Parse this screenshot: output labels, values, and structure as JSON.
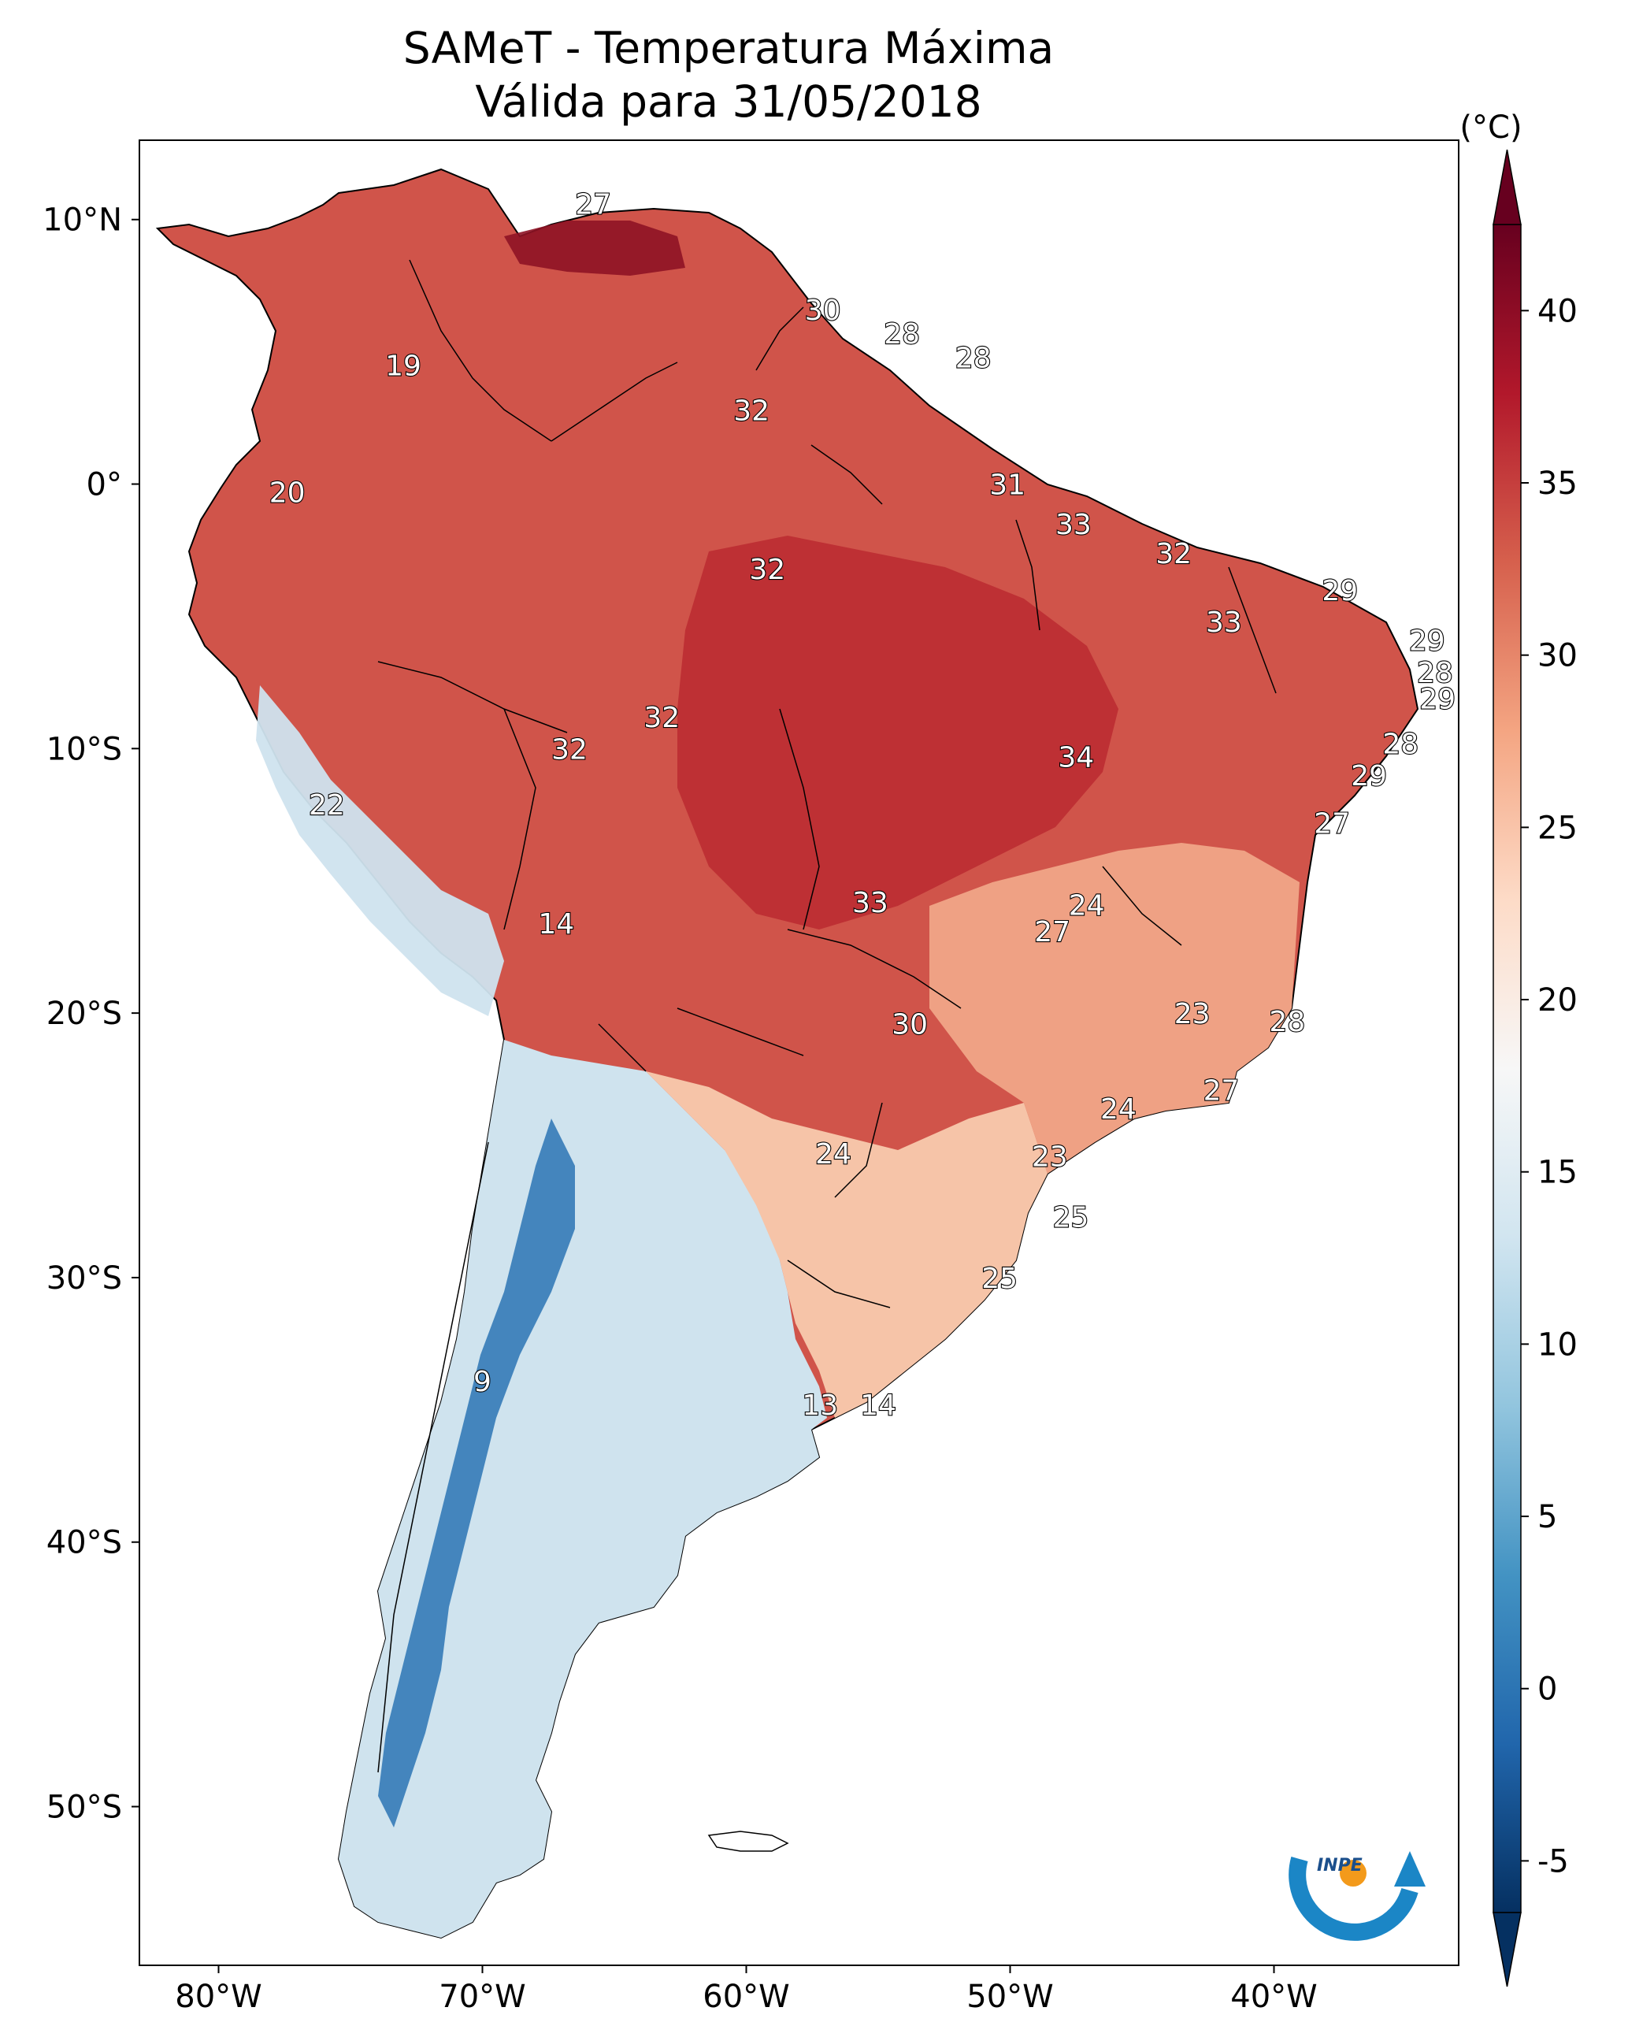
{
  "title": "SAMeT - Temperatura Máxima",
  "subtitle": "Válida para 31/05/2018",
  "colorbar": {
    "unit": "(°C)",
    "ticks": [
      "40",
      "35",
      "30",
      "25",
      "20",
      "15",
      "10",
      "5",
      "0",
      "-5"
    ],
    "colors": [
      "#053061",
      "#2166ac",
      "#4393c3",
      "#92c5de",
      "#d1e5f0",
      "#f7f7f7",
      "#fddbc7",
      "#f4a582",
      "#d6604d",
      "#b2182b",
      "#67001f"
    ]
  },
  "axes": {
    "lat_labels": [
      "10°N",
      "0°",
      "10°S",
      "20°S",
      "30°S",
      "40°S",
      "50°S"
    ],
    "lon_labels": [
      "80°W",
      "70°W",
      "60°W",
      "50°W",
      "40°W"
    ]
  },
  "map_labels": [
    {
      "text": "27",
      "lon": -65.8,
      "lat": 10.6
    },
    {
      "text": "30",
      "lon": -57.1,
      "lat": 6.6
    },
    {
      "text": "28",
      "lon": -54.1,
      "lat": 5.7
    },
    {
      "text": "28",
      "lon": -51.4,
      "lat": 4.8
    },
    {
      "text": "19",
      "lon": -73.0,
      "lat": 4.5
    },
    {
      "text": "32",
      "lon": -59.8,
      "lat": 2.8
    },
    {
      "text": "20",
      "lon": -77.4,
      "lat": -0.3
    },
    {
      "text": "31",
      "lon": -50.1,
      "lat": 0.0
    },
    {
      "text": "33",
      "lon": -47.6,
      "lat": -1.5
    },
    {
      "text": "32",
      "lon": -43.8,
      "lat": -2.6
    },
    {
      "text": "32",
      "lon": -59.2,
      "lat": -3.2
    },
    {
      "text": "29",
      "lon": -37.5,
      "lat": -4.0
    },
    {
      "text": "33",
      "lon": -41.9,
      "lat": -5.2
    },
    {
      "text": "29",
      "lon": -34.2,
      "lat": -5.9
    },
    {
      "text": "28",
      "lon": -33.9,
      "lat": -7.1
    },
    {
      "text": "29",
      "lon": -33.8,
      "lat": -8.1
    },
    {
      "text": "32",
      "lon": -63.2,
      "lat": -8.8
    },
    {
      "text": "28",
      "lon": -35.2,
      "lat": -9.8
    },
    {
      "text": "32",
      "lon": -66.7,
      "lat": -10.0
    },
    {
      "text": "34",
      "lon": -47.5,
      "lat": -10.3
    },
    {
      "text": "29",
      "lon": -36.4,
      "lat": -11.0
    },
    {
      "text": "22",
      "lon": -75.9,
      "lat": -12.1
    },
    {
      "text": "27",
      "lon": -37.8,
      "lat": -12.8
    },
    {
      "text": "24",
      "lon": -47.1,
      "lat": -15.9
    },
    {
      "text": "33",
      "lon": -55.3,
      "lat": -15.8
    },
    {
      "text": "14",
      "lon": -67.2,
      "lat": -16.6
    },
    {
      "text": "27",
      "lon": -48.4,
      "lat": -16.9
    },
    {
      "text": "23",
      "lon": -43.1,
      "lat": -20.0
    },
    {
      "text": "30",
      "lon": -53.8,
      "lat": -20.4
    },
    {
      "text": "28",
      "lon": -39.5,
      "lat": -20.3
    },
    {
      "text": "27",
      "lon": -42.0,
      "lat": -22.9
    },
    {
      "text": "24",
      "lon": -45.9,
      "lat": -23.6
    },
    {
      "text": "24",
      "lon": -56.7,
      "lat": -25.3
    },
    {
      "text": "23",
      "lon": -48.5,
      "lat": -25.4
    },
    {
      "text": "25",
      "lon": -47.7,
      "lat": -27.7
    },
    {
      "text": "25",
      "lon": -50.4,
      "lat": -30.0
    },
    {
      "text": "9",
      "lon": -70.0,
      "lat": -33.9
    },
    {
      "text": "13",
      "lon": -57.2,
      "lat": -34.8
    },
    {
      "text": "14",
      "lon": -55.0,
      "lat": -34.8
    }
  ],
  "logo": {
    "text": "INPE"
  }
}
